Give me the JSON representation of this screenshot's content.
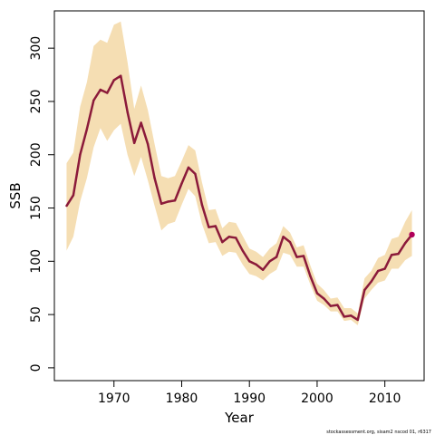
{
  "chart_data": {
    "type": "line",
    "title": "",
    "xlabel": "Year",
    "ylabel": "SSB",
    "xlim": [
      1961.2,
      2015.8
    ],
    "ylim": [
      -12,
      335
    ],
    "xticks": [
      1970,
      1980,
      1990,
      2000,
      2010
    ],
    "yticks": [
      0,
      50,
      100,
      150,
      200,
      250,
      300
    ],
    "grid": false,
    "legend": "none",
    "colors": {
      "band": "#f5deb3",
      "line": "#8b1a3a",
      "last_point": "#b0005a"
    },
    "x": [
      1963,
      1964,
      1965,
      1966,
      1967,
      1968,
      1969,
      1970,
      1971,
      1972,
      1973,
      1974,
      1975,
      1976,
      1977,
      1978,
      1979,
      1980,
      1981,
      1982,
      1983,
      1984,
      1985,
      1986,
      1987,
      1988,
      1989,
      1990,
      1991,
      1992,
      1993,
      1994,
      1995,
      1996,
      1997,
      1998,
      1999,
      2000,
      2001,
      2002,
      2003,
      2004,
      2005,
      2006,
      2007,
      2008,
      2009,
      2010,
      2011,
      2012,
      2013,
      2014
    ],
    "series": [
      {
        "values": [
          152,
          162,
          200,
          224,
          251,
          261,
          258,
          270,
          274,
          240,
          211,
          230,
          210,
          178,
          154,
          156,
          157,
          173,
          188,
          182,
          153,
          132,
          133,
          118,
          123,
          122,
          110,
          100,
          97,
          92,
          100,
          104,
          123,
          118,
          104,
          105,
          86,
          70,
          65,
          58,
          59,
          48,
          49,
          45,
          73,
          81,
          91,
          93,
          106,
          107,
          117,
          125
        ],
        "lower": [
          110,
          123,
          156,
          178,
          207,
          225,
          213,
          223,
          229,
          200,
          180,
          198,
          176,
          152,
          129,
          135,
          137,
          153,
          168,
          161,
          135,
          117,
          118,
          105,
          109,
          108,
          97,
          88,
          86,
          82,
          88,
          92,
          108,
          106,
          95,
          95,
          78,
          63,
          59,
          53,
          53,
          44,
          45,
          40,
          65,
          73,
          80,
          82,
          93,
          93,
          101,
          105
        ],
        "upper": [
          192,
          202,
          245,
          268,
          302,
          308,
          305,
          322,
          325,
          287,
          243,
          265,
          242,
          210,
          180,
          178,
          180,
          194,
          209,
          204,
          174,
          148,
          149,
          131,
          137,
          136,
          124,
          112,
          109,
          104,
          112,
          117,
          133,
          127,
          113,
          115,
          96,
          79,
          73,
          65,
          66,
          56,
          56,
          51,
          84,
          91,
          103,
          106,
          121,
          123,
          137,
          148
        ]
      }
    ]
  },
  "footer": {
    "credit": "stockassessment.org, sisam2 nscod 01, r6317"
  }
}
